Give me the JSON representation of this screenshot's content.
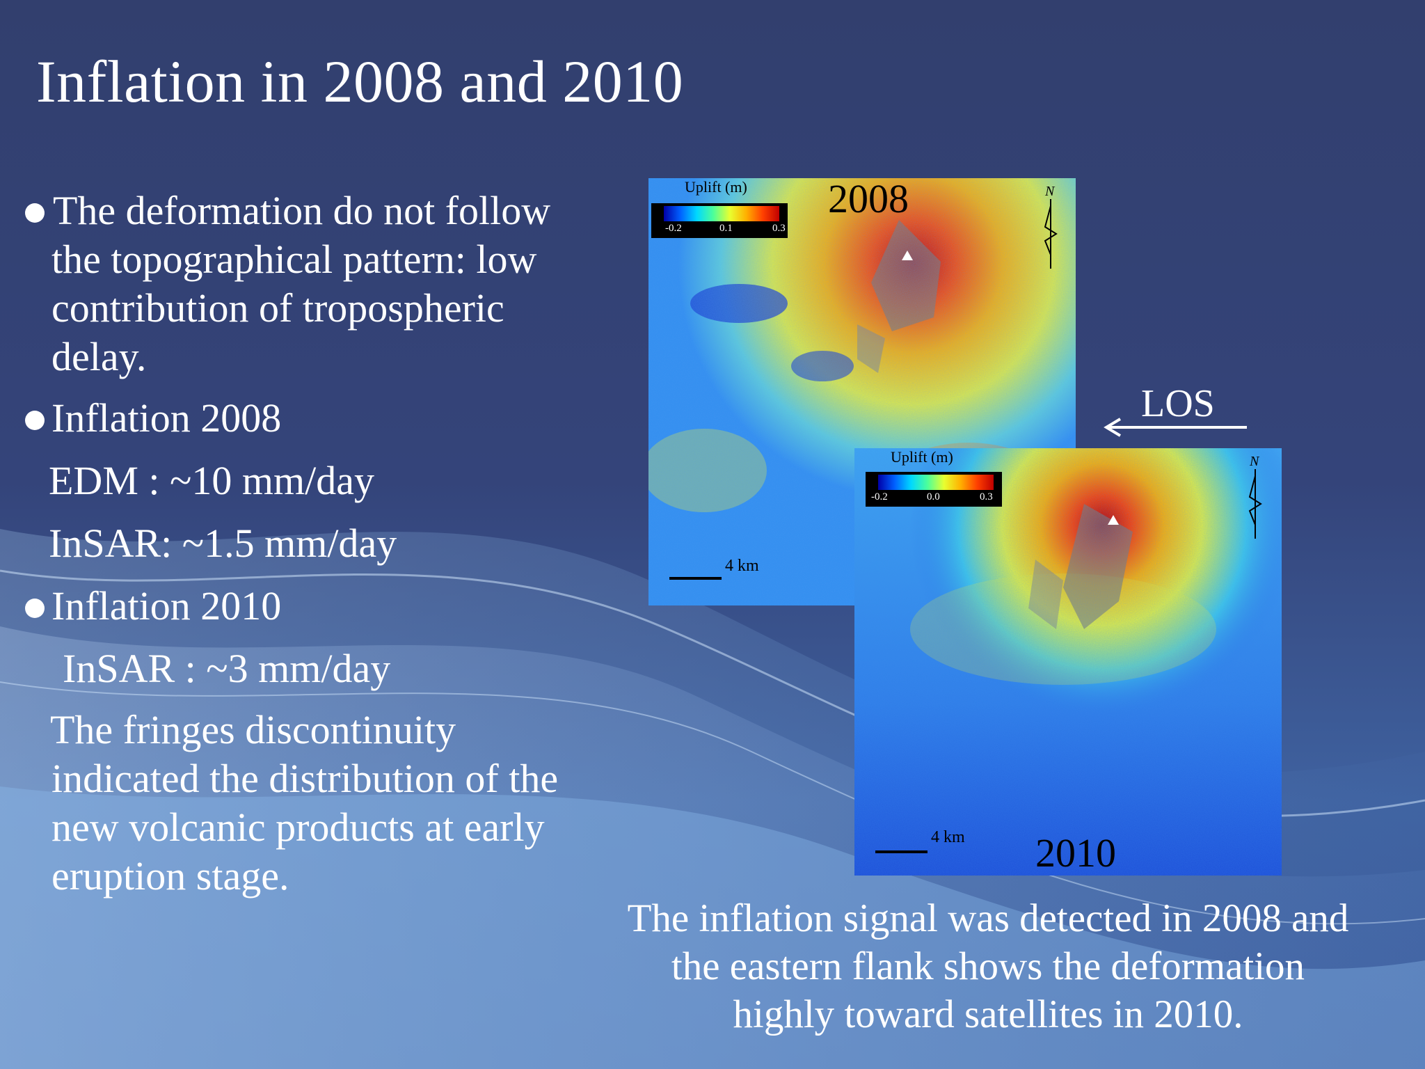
{
  "slide": {
    "title": "Inflation in 2008 and 2010"
  },
  "left_text": {
    "bullet1": [
      "The deformation do not follow",
      "the topographical pattern: low",
      "contribution of tropospheric",
      "delay."
    ],
    "bullet2_title": "Inflation 2008",
    "bullet2_lines": [
      "EDM : ~10 mm/day",
      "InSAR: ~1.5 mm/day"
    ],
    "bullet3_title": "Inflation 2010",
    "bullet3_lines": [
      "InSAR : ~3 mm/day"
    ],
    "paragraph": [
      "The fringes discontinuity",
      "indicated the distribution of the",
      "new volcanic products at early",
      "eruption stage."
    ]
  },
  "maps": [
    {
      "year": "2008",
      "colorbar_label": "Uplift (m)",
      "ticks": [
        "-0.2",
        "0.1",
        "0.3"
      ],
      "scale": "4 km",
      "north": "N"
    },
    {
      "year": "2010",
      "colorbar_label": "Uplift (m)",
      "ticks": [
        "-0.2",
        "0.0",
        "0.3"
      ],
      "scale": "4 km",
      "north": "N"
    }
  ],
  "los": {
    "label": "LOS"
  },
  "caption": [
    "The inflation signal was detected in 2008 and",
    "the eastern flank shows the deformation",
    "highly toward satellites in 2010."
  ],
  "colors": {
    "background": "#33406f",
    "background_light": "#7fb0e0",
    "text": "#ffffff"
  }
}
